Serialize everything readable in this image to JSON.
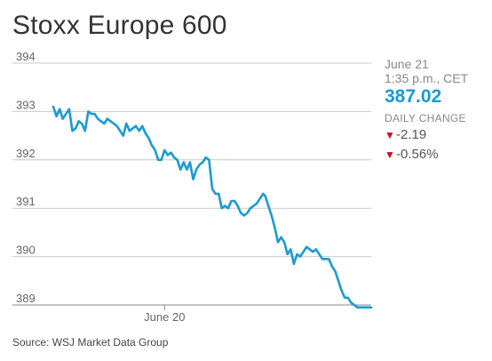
{
  "title": "Stoxx Europe 600",
  "source": "Source: WSJ Market Data Group",
  "sidebar": {
    "date": "June 21",
    "time": "1:35 p.m., CET",
    "price": "387.02",
    "daily_change_label": "DAILY CHANGE",
    "change_points": "-2.19",
    "change_percent": "-0.56%",
    "down_icon": "triangle-down-icon"
  },
  "colors": {
    "line": "#1a9ad6",
    "price": "#1a9ad6",
    "down": "#d0021b",
    "grid": "#c9c9c9"
  },
  "chart_data": {
    "type": "line",
    "title": "Stoxx Europe 600",
    "xlabel": "",
    "ylabel": "",
    "ylim": [
      388.8,
      394
    ],
    "yticks": [
      394,
      393,
      392,
      391,
      390,
      389
    ],
    "xticks": [
      {
        "label": "June 20",
        "x": 21
      }
    ],
    "grid": true,
    "x": [
      0,
      0.6,
      1.2,
      1.8,
      2.4,
      3,
      3.6,
      4.2,
      4.8,
      5.4,
      6,
      6.6,
      7.2,
      7.8,
      8.4,
      9,
      9.6,
      10.2,
      10.8,
      11.4,
      12,
      12.6,
      13.2,
      13.8,
      14.4,
      15,
      15.6,
      16.2,
      16.8,
      17.4,
      18,
      18.6,
      19.2,
      19.8,
      20.4,
      21,
      21.6,
      22.2,
      22.8,
      23.4,
      24,
      24.6,
      25.2,
      25.8,
      26.4,
      27,
      27.6,
      28.2,
      28.8,
      29.4,
      30,
      30.6,
      31.2,
      31.8,
      32.4,
      33,
      33.6,
      34.2,
      34.8,
      35.4,
      36,
      36.6,
      37.2,
      37.8,
      38.4,
      39,
      39.6,
      40,
      40.6,
      41.2,
      41.8,
      42.4,
      43,
      43.6,
      44.2,
      44.8,
      45.4,
      46,
      46.6,
      47.2,
      47.8,
      48.4,
      49,
      49.6,
      50.2,
      50.8,
      51.4,
      52,
      52.6,
      53.2,
      53.8,
      54.4,
      55,
      55.6,
      56.2,
      56.8,
      57.4,
      58,
      58.6,
      59.2,
      59.8,
      60
    ],
    "values": [
      393.1,
      392.9,
      393.05,
      392.85,
      392.95,
      393.05,
      392.6,
      392.65,
      392.8,
      392.75,
      392.6,
      393,
      392.95,
      392.95,
      392.85,
      392.8,
      392.75,
      392.85,
      392.8,
      392.75,
      392.7,
      392.6,
      392.5,
      392.75,
      392.6,
      392.65,
      392.7,
      392.6,
      392.7,
      392.55,
      392.45,
      392.3,
      392.2,
      392,
      392,
      392.2,
      392.1,
      392.15,
      392.05,
      392,
      391.8,
      391.95,
      391.8,
      391.95,
      391.6,
      391.8,
      391.9,
      391.95,
      392.05,
      392,
      391.4,
      391.3,
      391.3,
      391,
      391.05,
      391,
      391.15,
      391.15,
      391.05,
      390.9,
      390.85,
      390.9,
      391,
      391.05,
      391.1,
      391.2,
      391.3,
      391.25,
      391.05,
      390.85,
      390.6,
      390.3,
      390.4,
      390.3,
      390.05,
      390.15,
      389.85,
      390.05,
      390,
      390.1,
      390.2,
      390.15,
      390.1,
      390.15,
      390.05,
      389.95,
      389.95,
      389.95,
      389.8,
      389.7,
      389.5,
      389.3,
      389.15,
      389.15,
      389.05,
      389,
      388.95,
      388.95,
      388.95,
      388.95,
      388.95,
      388.95
    ],
    "line_color": "#1a9ad6"
  }
}
